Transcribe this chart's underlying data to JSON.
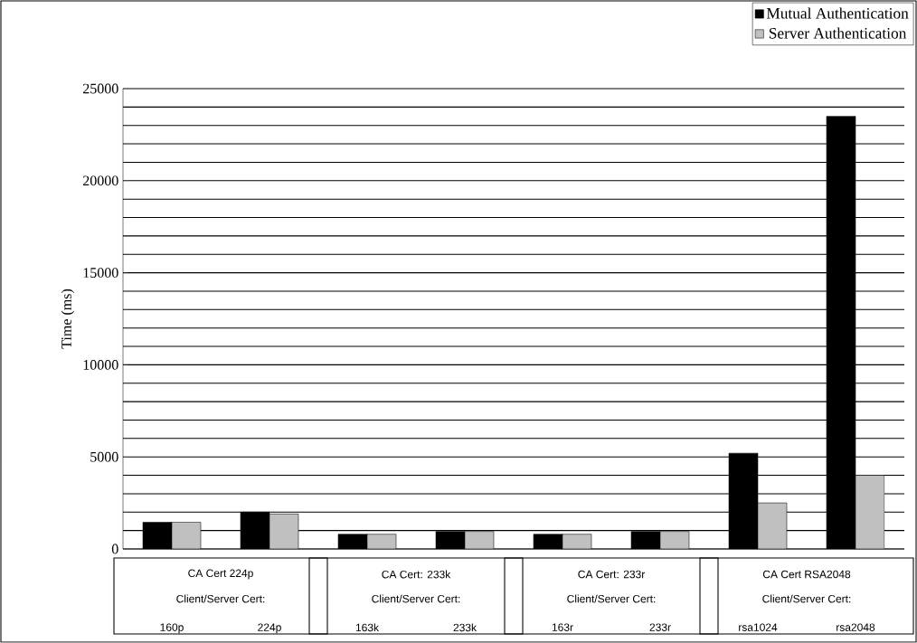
{
  "chart_data": {
    "type": "bar",
    "ylabel": "Time (ms)",
    "categories": [
      "160p",
      "224p",
      "163k",
      "233k",
      "163r",
      "233r",
      "rsa1024",
      "rsa2048"
    ],
    "series": [
      {
        "name": "Mutual Authentication",
        "color": "#000000",
        "values": [
          1450,
          2000,
          800,
          950,
          800,
          950,
          5200,
          23500
        ]
      },
      {
        "name": "Server Authentication",
        "color": "#c0c0c0",
        "values": [
          1450,
          1900,
          800,
          950,
          800,
          950,
          2500,
          4000
        ]
      }
    ],
    "ylim": [
      0,
      25000
    ],
    "yticks": [
      0,
      5000,
      10000,
      15000,
      20000,
      25000
    ],
    "grid": "y",
    "legend": "top right",
    "annotations": [
      "CA Cert 224p",
      "Client/Server Cert:",
      "CA Cert: 233k",
      "Client/Server Cert:",
      "CA Cert: 233r",
      "Client/Server Cert:",
      "CA Cert RSA2048",
      "Client/Server Cert:"
    ]
  }
}
